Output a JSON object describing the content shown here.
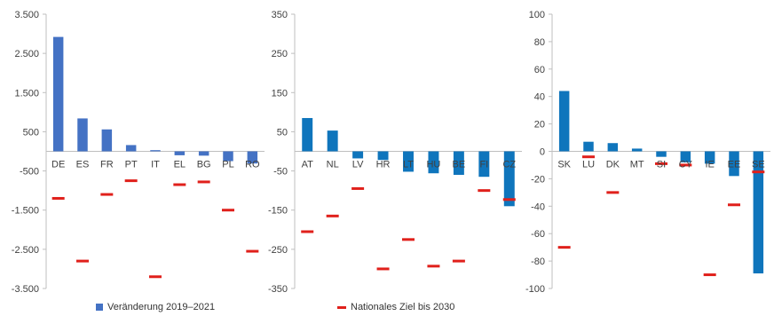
{
  "colors": {
    "bar": "#4472C4",
    "bar_teal": "#0F75BC",
    "target": "#E0201B",
    "axis": "#BFBFBF",
    "text": "#404040"
  },
  "legend": {
    "bar_label": "Veränderung 2019–2021",
    "target_label": "Nationales Ziel bis 2030"
  },
  "chart_data": [
    {
      "type": "bar",
      "categories": [
        "DE",
        "ES",
        "FR",
        "PT",
        "IT",
        "EL",
        "BG",
        "PL",
        "RO"
      ],
      "series": [
        {
          "name": "Veränderung 2019–2021",
          "values": [
            2920,
            840,
            560,
            160,
            30,
            -100,
            -110,
            -250,
            -310
          ]
        },
        {
          "name": "Nationales Ziel bis 2030",
          "values": [
            -1200,
            -2800,
            -1100,
            -750,
            -3200,
            -850,
            -780,
            -1500,
            -2550
          ]
        }
      ],
      "yticks": [
        3500,
        2500,
        1500,
        500,
        -500,
        -1500,
        -2500,
        -3500
      ],
      "ytick_labels": [
        "3.500",
        "2.500",
        "1.500",
        "500",
        "-500",
        "-1.500",
        "-2.500",
        "-3.500"
      ],
      "ylim": [
        -3500,
        3500
      ],
      "zero": 0
    },
    {
      "type": "bar",
      "categories": [
        "AT",
        "NL",
        "LV",
        "HR",
        "LT",
        "HU",
        "BE",
        "FI",
        "CZ"
      ],
      "series": [
        {
          "name": "Veränderung 2019–2021",
          "values": [
            85,
            53,
            -18,
            -22,
            -52,
            -56,
            -60,
            -65,
            -140
          ]
        },
        {
          "name": "Nationales Ziel bis 2030",
          "values": [
            -205,
            -165,
            -95,
            -300,
            -225,
            -293,
            -280,
            -100,
            -123
          ]
        }
      ],
      "yticks": [
        350,
        250,
        150,
        50,
        -50,
        -150,
        -250,
        -350
      ],
      "ytick_labels": [
        "350",
        "250",
        "150",
        "50",
        "-50",
        "-150",
        "-250",
        "-350"
      ],
      "ylim": [
        -350,
        350
      ],
      "zero": 0
    },
    {
      "type": "bar",
      "categories": [
        "SK",
        "LU",
        "DK",
        "MT",
        "SI",
        "CY",
        "IE",
        "EE",
        "SE"
      ],
      "series": [
        {
          "name": "Veränderung 2019–2021",
          "values": [
            44,
            7,
            6,
            2,
            -4,
            -8,
            -9,
            -18,
            -89
          ]
        },
        {
          "name": "Nationales Ziel bis 2030",
          "values": [
            -70,
            -4,
            -30,
            null,
            -9,
            -10,
            -90,
            -39,
            -15
          ]
        }
      ],
      "yticks": [
        100,
        80,
        60,
        40,
        20,
        0,
        -20,
        -40,
        -60,
        -80,
        -100
      ],
      "ytick_labels": [
        "100",
        "80",
        "60",
        "40",
        "20",
        "0",
        "-20",
        "-40",
        "-60",
        "-80",
        "-100"
      ],
      "ylim": [
        -100,
        100
      ],
      "zero": 0
    }
  ]
}
